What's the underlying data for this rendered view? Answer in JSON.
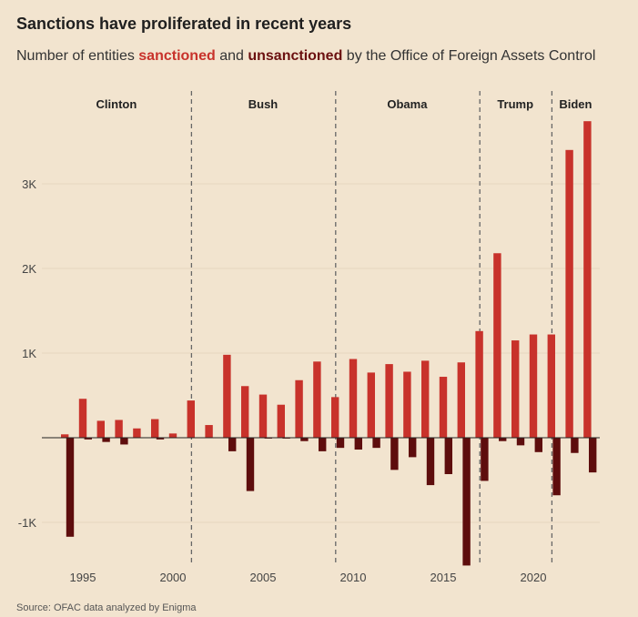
{
  "title": "Sanctions have proliferated in recent years",
  "subtitle": {
    "prefix": "Number of entities ",
    "sanctioned": "sanctioned",
    "middle": " and ",
    "unsanctioned": "unsanctioned",
    "suffix": " by the Office of Foreign Assets Control"
  },
  "source": "Source: OFAC data analyzed by Enigma",
  "colors": {
    "sanctioned": "#c8322b",
    "unsanctioned": "#5e0d0d",
    "background": "#f2e4cf"
  },
  "chart_data": {
    "type": "bar",
    "x": [
      1994,
      1995,
      1996,
      1997,
      1998,
      1999,
      2000,
      2001,
      2002,
      2003,
      2004,
      2005,
      2006,
      2007,
      2008,
      2009,
      2010,
      2011,
      2012,
      2013,
      2014,
      2015,
      2016,
      2017,
      2018,
      2019,
      2020,
      2021,
      2022,
      2023
    ],
    "series": [
      {
        "name": "sanctioned",
        "values": [
          40,
          460,
          200,
          210,
          110,
          220,
          50,
          440,
          150,
          980,
          610,
          510,
          390,
          680,
          900,
          480,
          930,
          770,
          870,
          780,
          910,
          720,
          890,
          1260,
          2180,
          1150,
          1220,
          1220,
          3400,
          3740
        ]
      },
      {
        "name": "unsanctioned",
        "values": [
          -1170,
          -20,
          -50,
          -80,
          0,
          -20,
          0,
          0,
          0,
          -160,
          -630,
          -10,
          -10,
          -40,
          -160,
          -120,
          -140,
          -120,
          -380,
          -230,
          -560,
          -430,
          -1510,
          -510,
          -40,
          -90,
          -170,
          -680,
          -180,
          -410
        ]
      }
    ],
    "eras": [
      {
        "label": "Clinton",
        "start": 1993,
        "end": 2001
      },
      {
        "label": "Bush",
        "start": 2001,
        "end": 2009
      },
      {
        "label": "Obama",
        "start": 2009,
        "end": 2017
      },
      {
        "label": "Trump",
        "start": 2017,
        "end": 2021
      },
      {
        "label": "Biden",
        "start": 2021,
        "end": 2024
      }
    ],
    "y_ticks": [
      {
        "value": 3000,
        "label": "3K"
      },
      {
        "value": 2000,
        "label": "2K"
      },
      {
        "value": 1000,
        "label": "1K"
      },
      {
        "value": -1000,
        "label": "-1K"
      }
    ],
    "x_ticks": [
      1995,
      2000,
      2005,
      2010,
      2015,
      2020
    ],
    "ylim": [
      -1500,
      3800
    ],
    "xlim": [
      1993,
      2024
    ],
    "grid": true
  }
}
